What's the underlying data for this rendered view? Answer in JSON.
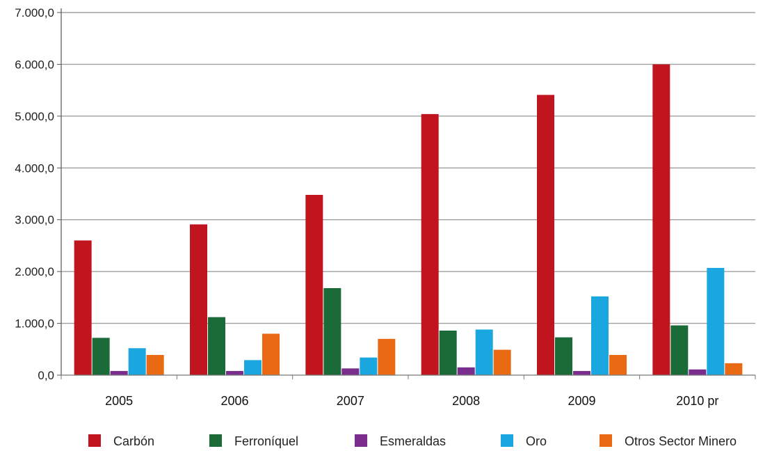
{
  "chart_data": {
    "type": "bar",
    "categories": [
      "2005",
      "2006",
      "2007",
      "2008",
      "2009",
      "2010 pr"
    ],
    "series": [
      {
        "name": "Carbón",
        "color": "#c0141e",
        "values": [
          2600,
          2910,
          3480,
          5040,
          5410,
          6000
        ]
      },
      {
        "name": "Ferroníquel",
        "color": "#1a6b38",
        "values": [
          720,
          1120,
          1680,
          860,
          730,
          960
        ]
      },
      {
        "name": "Esmeraldas",
        "color": "#7b2d8e",
        "values": [
          80,
          80,
          130,
          150,
          80,
          110
        ]
      },
      {
        "name": "Oro",
        "color": "#1aa7e0",
        "values": [
          520,
          290,
          340,
          880,
          1520,
          2070
        ]
      },
      {
        "name": "Otros Sector Minero",
        "color": "#ea6a14",
        "values": [
          390,
          800,
          700,
          490,
          390,
          230
        ]
      }
    ],
    "yticks": [
      "0,0",
      "1.000,0",
      "2.000,0",
      "3.000,0",
      "4.000,0",
      "5.000,0",
      "6.000,0",
      "7.000,0"
    ],
    "ylim": [
      0,
      7000
    ],
    "grid": true,
    "legend_position": "bottom"
  }
}
